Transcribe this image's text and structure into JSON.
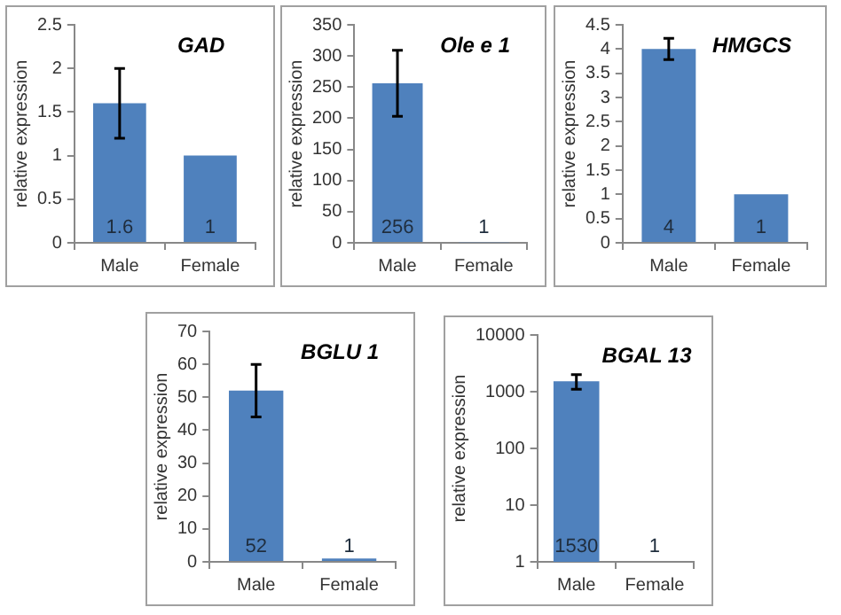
{
  "chart_data": [
    {
      "type": "bar",
      "title": "GAD",
      "ylabel": "relative expression",
      "categories": [
        "Male",
        "Female"
      ],
      "values": [
        1.6,
        1
      ],
      "errors": [
        [
          1.2,
          2.0
        ],
        null
      ],
      "color": "#4f81bd",
      "ylim": [
        0,
        2.5
      ],
      "yticks": [
        0,
        0.5,
        1,
        1.5,
        2,
        2.5
      ],
      "data_labels": true,
      "grid": false,
      "legend": false
    },
    {
      "type": "bar",
      "title": "Ole e 1",
      "ylabel": "relative expression",
      "categories": [
        "Male",
        "Female"
      ],
      "values": [
        256,
        1
      ],
      "errors": [
        [
          203,
          309
        ],
        null
      ],
      "color": "#4f81bd",
      "ylim": [
        0,
        350
      ],
      "yticks": [
        0,
        50,
        100,
        150,
        200,
        250,
        300,
        350
      ],
      "data_labels": true,
      "grid": false,
      "legend": false
    },
    {
      "type": "bar",
      "title": "HMGCS",
      "ylabel": "relative expression",
      "categories": [
        "Male",
        "Female"
      ],
      "values": [
        4,
        1
      ],
      "errors": [
        [
          3.78,
          4.22
        ],
        null
      ],
      "color": "#4f81bd",
      "ylim": [
        0,
        4.5
      ],
      "yticks": [
        0,
        0.5,
        1,
        1.5,
        2,
        2.5,
        3,
        3.5,
        4,
        4.5
      ],
      "data_labels": true,
      "grid": false,
      "legend": false
    },
    {
      "type": "bar",
      "title": "BGLU 1",
      "ylabel": "relative expression",
      "categories": [
        "Male",
        "Female"
      ],
      "values": [
        52,
        1
      ],
      "errors": [
        [
          44,
          60
        ],
        null
      ],
      "color": "#4f81bd",
      "ylim": [
        0,
        70
      ],
      "yticks": [
        0,
        10,
        20,
        30,
        40,
        50,
        60,
        70
      ],
      "data_labels": true,
      "grid": false,
      "legend": false
    },
    {
      "type": "bar",
      "title": "BGAL 13",
      "ylabel": "relative expression",
      "categories": [
        "Male",
        "Female"
      ],
      "values": [
        1530,
        1
      ],
      "errors": [
        [
          1100,
          2000
        ],
        null
      ],
      "color": "#4f81bd",
      "ylim": [
        1,
        10000
      ],
      "yticks": [
        1,
        10,
        100,
        1000,
        10000
      ],
      "log": true,
      "data_labels": true,
      "grid": false,
      "legend": false
    }
  ]
}
